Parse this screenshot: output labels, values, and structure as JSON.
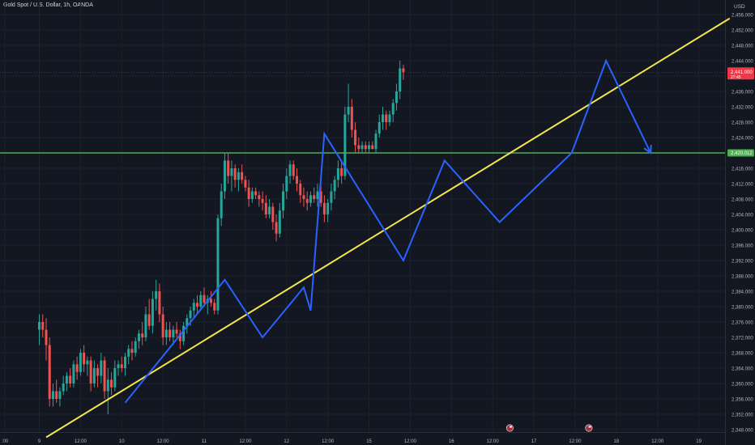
{
  "title": "Gold Spot / U.S. Dollar, 1h, OANDA",
  "currency": "USD",
  "price_tag": {
    "value": "2,441.000",
    "sub": "27:45",
    "color": "#f23645"
  },
  "level_tag": {
    "value": "2,420.012",
    "color": "#4caf50"
  },
  "colors": {
    "background": "#131722",
    "grid": "#1e222d",
    "text": "#b2b5be",
    "up": "#26a69a",
    "down": "#ef5350",
    "trendline": "#f5e64b",
    "horizontal_level": "#4caf50",
    "zigzag": "#2962ff"
  },
  "chart_data": {
    "type": "candlestick",
    "title": "Gold Spot / U.S. Dollar, 1h, OANDA",
    "y_axis": {
      "min": 2346,
      "max": 2458,
      "ticks": [
        "2,348.000",
        "2,352.000",
        "2,356.000",
        "2,360.000",
        "2,364.000",
        "2,368.000",
        "2,372.000",
        "2,376.000",
        "2,380.000",
        "2,384.000",
        "2,388.000",
        "2,392.000",
        "2,396.000",
        "2,400.000",
        "2,404.000",
        "2,408.000",
        "2,412.000",
        "2,416.000",
        "2,420.000",
        "2,424.000",
        "2,428.000",
        "2,432.000",
        "2,436.000",
        "2,440.000",
        "2,444.000",
        "2,448.000",
        "2,452.000",
        "2,456.000"
      ]
    },
    "x_axis": {
      "ticks": [
        {
          "label": ":00",
          "t": -10
        },
        {
          "label": "9",
          "t": 0
        },
        {
          "label": "12:00",
          "t": 12
        },
        {
          "label": "10",
          "t": 24
        },
        {
          "label": "12:00",
          "t": 36
        },
        {
          "label": "11",
          "t": 48
        },
        {
          "label": "12:00",
          "t": 60
        },
        {
          "label": "12",
          "t": 72
        },
        {
          "label": "12:00",
          "t": 84
        },
        {
          "label": "15",
          "t": 96
        },
        {
          "label": "12:00",
          "t": 108
        },
        {
          "label": "16",
          "t": 120
        },
        {
          "label": "12:00",
          "t": 132
        },
        {
          "label": "17",
          "t": 144
        },
        {
          "label": "12:00",
          "t": 156
        },
        {
          "label": "18",
          "t": 168
        },
        {
          "label": "12:00",
          "t": 180
        },
        {
          "label": "19",
          "t": 192
        }
      ]
    },
    "candles": [
      {
        "o": 2374,
        "h": 2378,
        "l": 2370,
        "c": 2376
      },
      {
        "o": 2376,
        "h": 2378,
        "l": 2372,
        "c": 2374
      },
      {
        "o": 2374,
        "h": 2377,
        "l": 2366,
        "c": 2370
      },
      {
        "o": 2370,
        "h": 2372,
        "l": 2354,
        "c": 2356
      },
      {
        "o": 2356,
        "h": 2360,
        "l": 2354,
        "c": 2358
      },
      {
        "o": 2358,
        "h": 2361,
        "l": 2355,
        "c": 2356
      },
      {
        "o": 2356,
        "h": 2359,
        "l": 2354,
        "c": 2358
      },
      {
        "o": 2358,
        "h": 2362,
        "l": 2357,
        "c": 2360
      },
      {
        "o": 2360,
        "h": 2363,
        "l": 2358,
        "c": 2362
      },
      {
        "o": 2362,
        "h": 2364,
        "l": 2359,
        "c": 2360
      },
      {
        "o": 2360,
        "h": 2366,
        "l": 2359,
        "c": 2365
      },
      {
        "o": 2365,
        "h": 2367,
        "l": 2361,
        "c": 2363
      },
      {
        "o": 2363,
        "h": 2369,
        "l": 2362,
        "c": 2368
      },
      {
        "o": 2368,
        "h": 2370,
        "l": 2363,
        "c": 2365
      },
      {
        "o": 2365,
        "h": 2367,
        "l": 2362,
        "c": 2366
      },
      {
        "o": 2366,
        "h": 2367,
        "l": 2358,
        "c": 2360
      },
      {
        "o": 2360,
        "h": 2366,
        "l": 2359,
        "c": 2364
      },
      {
        "o": 2364,
        "h": 2365,
        "l": 2359,
        "c": 2362
      },
      {
        "o": 2362,
        "h": 2368,
        "l": 2360,
        "c": 2366
      },
      {
        "o": 2366,
        "h": 2367,
        "l": 2356,
        "c": 2358
      },
      {
        "o": 2358,
        "h": 2364,
        "l": 2352,
        "c": 2361
      },
      {
        "o": 2361,
        "h": 2363,
        "l": 2357,
        "c": 2359
      },
      {
        "o": 2359,
        "h": 2366,
        "l": 2358,
        "c": 2364
      },
      {
        "o": 2364,
        "h": 2366,
        "l": 2362,
        "c": 2365
      },
      {
        "o": 2365,
        "h": 2367,
        "l": 2363,
        "c": 2364
      },
      {
        "o": 2364,
        "h": 2368,
        "l": 2362,
        "c": 2367
      },
      {
        "o": 2367,
        "h": 2370,
        "l": 2365,
        "c": 2369
      },
      {
        "o": 2369,
        "h": 2371,
        "l": 2366,
        "c": 2368
      },
      {
        "o": 2368,
        "h": 2372,
        "l": 2367,
        "c": 2371
      },
      {
        "o": 2371,
        "h": 2374,
        "l": 2369,
        "c": 2373
      },
      {
        "o": 2373,
        "h": 2376,
        "l": 2370,
        "c": 2372
      },
      {
        "o": 2372,
        "h": 2380,
        "l": 2371,
        "c": 2378
      },
      {
        "o": 2378,
        "h": 2382,
        "l": 2374,
        "c": 2375
      },
      {
        "o": 2375,
        "h": 2384,
        "l": 2373,
        "c": 2382
      },
      {
        "o": 2382,
        "h": 2387,
        "l": 2379,
        "c": 2384
      },
      {
        "o": 2384,
        "h": 2386,
        "l": 2376,
        "c": 2378
      },
      {
        "o": 2378,
        "h": 2380,
        "l": 2370,
        "c": 2372
      },
      {
        "o": 2372,
        "h": 2376,
        "l": 2370,
        "c": 2374
      },
      {
        "o": 2374,
        "h": 2376,
        "l": 2371,
        "c": 2372
      },
      {
        "o": 2372,
        "h": 2375,
        "l": 2370,
        "c": 2374
      },
      {
        "o": 2374,
        "h": 2376,
        "l": 2372,
        "c": 2373
      },
      {
        "o": 2373,
        "h": 2374,
        "l": 2369,
        "c": 2371
      },
      {
        "o": 2371,
        "h": 2376,
        "l": 2370,
        "c": 2375
      },
      {
        "o": 2375,
        "h": 2378,
        "l": 2373,
        "c": 2377
      },
      {
        "o": 2377,
        "h": 2380,
        "l": 2375,
        "c": 2379
      },
      {
        "o": 2379,
        "h": 2382,
        "l": 2377,
        "c": 2381
      },
      {
        "o": 2381,
        "h": 2383,
        "l": 2378,
        "c": 2380
      },
      {
        "o": 2380,
        "h": 2384,
        "l": 2379,
        "c": 2383
      },
      {
        "o": 2383,
        "h": 2385,
        "l": 2380,
        "c": 2381
      },
      {
        "o": 2381,
        "h": 2383,
        "l": 2378,
        "c": 2382
      },
      {
        "o": 2382,
        "h": 2384,
        "l": 2380,
        "c": 2381
      },
      {
        "o": 2381,
        "h": 2382,
        "l": 2378,
        "c": 2379
      },
      {
        "o": 2379,
        "h": 2404,
        "l": 2378,
        "c": 2403
      },
      {
        "o": 2403,
        "h": 2412,
        "l": 2401,
        "c": 2410
      },
      {
        "o": 2410,
        "h": 2420,
        "l": 2408,
        "c": 2418
      },
      {
        "o": 2418,
        "h": 2420,
        "l": 2412,
        "c": 2414
      },
      {
        "o": 2414,
        "h": 2418,
        "l": 2410,
        "c": 2416
      },
      {
        "o": 2416,
        "h": 2417,
        "l": 2411,
        "c": 2413
      },
      {
        "o": 2413,
        "h": 2416,
        "l": 2410,
        "c": 2415
      },
      {
        "o": 2415,
        "h": 2417,
        "l": 2412,
        "c": 2413
      },
      {
        "o": 2413,
        "h": 2414,
        "l": 2410,
        "c": 2411
      },
      {
        "o": 2411,
        "h": 2413,
        "l": 2406,
        "c": 2408
      },
      {
        "o": 2408,
        "h": 2411,
        "l": 2407,
        "c": 2410
      },
      {
        "o": 2410,
        "h": 2411,
        "l": 2408,
        "c": 2409
      },
      {
        "o": 2409,
        "h": 2410,
        "l": 2406,
        "c": 2408
      },
      {
        "o": 2408,
        "h": 2410,
        "l": 2405,
        "c": 2407
      },
      {
        "o": 2407,
        "h": 2409,
        "l": 2403,
        "c": 2404
      },
      {
        "o": 2404,
        "h": 2408,
        "l": 2403,
        "c": 2406
      },
      {
        "o": 2406,
        "h": 2407,
        "l": 2400,
        "c": 2402
      },
      {
        "o": 2402,
        "h": 2404,
        "l": 2397,
        "c": 2399
      },
      {
        "o": 2399,
        "h": 2407,
        "l": 2398,
        "c": 2405
      },
      {
        "o": 2405,
        "h": 2412,
        "l": 2403,
        "c": 2410
      },
      {
        "o": 2410,
        "h": 2416,
        "l": 2408,
        "c": 2414
      },
      {
        "o": 2414,
        "h": 2418,
        "l": 2412,
        "c": 2417
      },
      {
        "o": 2417,
        "h": 2418,
        "l": 2413,
        "c": 2414
      },
      {
        "o": 2414,
        "h": 2416,
        "l": 2410,
        "c": 2412
      },
      {
        "o": 2412,
        "h": 2413,
        "l": 2407,
        "c": 2409
      },
      {
        "o": 2409,
        "h": 2411,
        "l": 2406,
        "c": 2408
      },
      {
        "o": 2408,
        "h": 2410,
        "l": 2405,
        "c": 2407
      },
      {
        "o": 2407,
        "h": 2410,
        "l": 2406,
        "c": 2409
      },
      {
        "o": 2409,
        "h": 2411,
        "l": 2407,
        "c": 2408
      },
      {
        "o": 2408,
        "h": 2412,
        "l": 2406,
        "c": 2410
      },
      {
        "o": 2410,
        "h": 2412,
        "l": 2406,
        "c": 2407
      },
      {
        "o": 2407,
        "h": 2409,
        "l": 2402,
        "c": 2404
      },
      {
        "o": 2404,
        "h": 2408,
        "l": 2402,
        "c": 2407
      },
      {
        "o": 2407,
        "h": 2412,
        "l": 2405,
        "c": 2410
      },
      {
        "o": 2410,
        "h": 2414,
        "l": 2408,
        "c": 2413
      },
      {
        "o": 2413,
        "h": 2418,
        "l": 2411,
        "c": 2416
      },
      {
        "o": 2416,
        "h": 2418,
        "l": 2412,
        "c": 2414
      },
      {
        "o": 2414,
        "h": 2432,
        "l": 2413,
        "c": 2430
      },
      {
        "o": 2430,
        "h": 2438,
        "l": 2428,
        "c": 2432
      },
      {
        "o": 2432,
        "h": 2434,
        "l": 2424,
        "c": 2426
      },
      {
        "o": 2426,
        "h": 2428,
        "l": 2420,
        "c": 2422
      },
      {
        "o": 2422,
        "h": 2424,
        "l": 2420,
        "c": 2421
      },
      {
        "o": 2421,
        "h": 2423,
        "l": 2420,
        "c": 2422
      },
      {
        "o": 2422,
        "h": 2423,
        "l": 2420,
        "c": 2421
      },
      {
        "o": 2421,
        "h": 2423,
        "l": 2420,
        "c": 2422
      },
      {
        "o": 2422,
        "h": 2423,
        "l": 2421,
        "c": 2421
      },
      {
        "o": 2421,
        "h": 2426,
        "l": 2420,
        "c": 2425
      },
      {
        "o": 2425,
        "h": 2430,
        "l": 2424,
        "c": 2428
      },
      {
        "o": 2428,
        "h": 2432,
        "l": 2426,
        "c": 2430
      },
      {
        "o": 2430,
        "h": 2431,
        "l": 2426,
        "c": 2428
      },
      {
        "o": 2428,
        "h": 2431,
        "l": 2427,
        "c": 2430
      },
      {
        "o": 2430,
        "h": 2434,
        "l": 2428,
        "c": 2433
      },
      {
        "o": 2433,
        "h": 2438,
        "l": 2431,
        "c": 2436
      },
      {
        "o": 2436,
        "h": 2444,
        "l": 2434,
        "c": 2442
      },
      {
        "o": 2442,
        "h": 2443,
        "l": 2439,
        "c": 2441
      }
    ],
    "horizontal_level": 2420,
    "current_price": 2441,
    "trendline": [
      {
        "t": 2,
        "price": 2346
      },
      {
        "t": 201,
        "price": 2455
      }
    ],
    "zigzag": [
      {
        "t": 25,
        "price": 2355
      },
      {
        "t": 54,
        "price": 2387
      },
      {
        "t": 65,
        "price": 2372
      },
      {
        "t": 77,
        "price": 2385
      },
      {
        "t": 79,
        "price": 2379
      },
      {
        "t": 83,
        "price": 2425
      },
      {
        "t": 106,
        "price": 2392
      },
      {
        "t": 118,
        "price": 2418
      },
      {
        "t": 134,
        "price": 2402
      },
      {
        "t": 155,
        "price": 2420
      },
      {
        "t": 165,
        "price": 2444
      },
      {
        "t": 178,
        "price": 2420
      }
    ],
    "markers": [
      {
        "t": 137,
        "kind": "event-flag"
      },
      {
        "t": 160,
        "kind": "event-flag"
      }
    ]
  }
}
